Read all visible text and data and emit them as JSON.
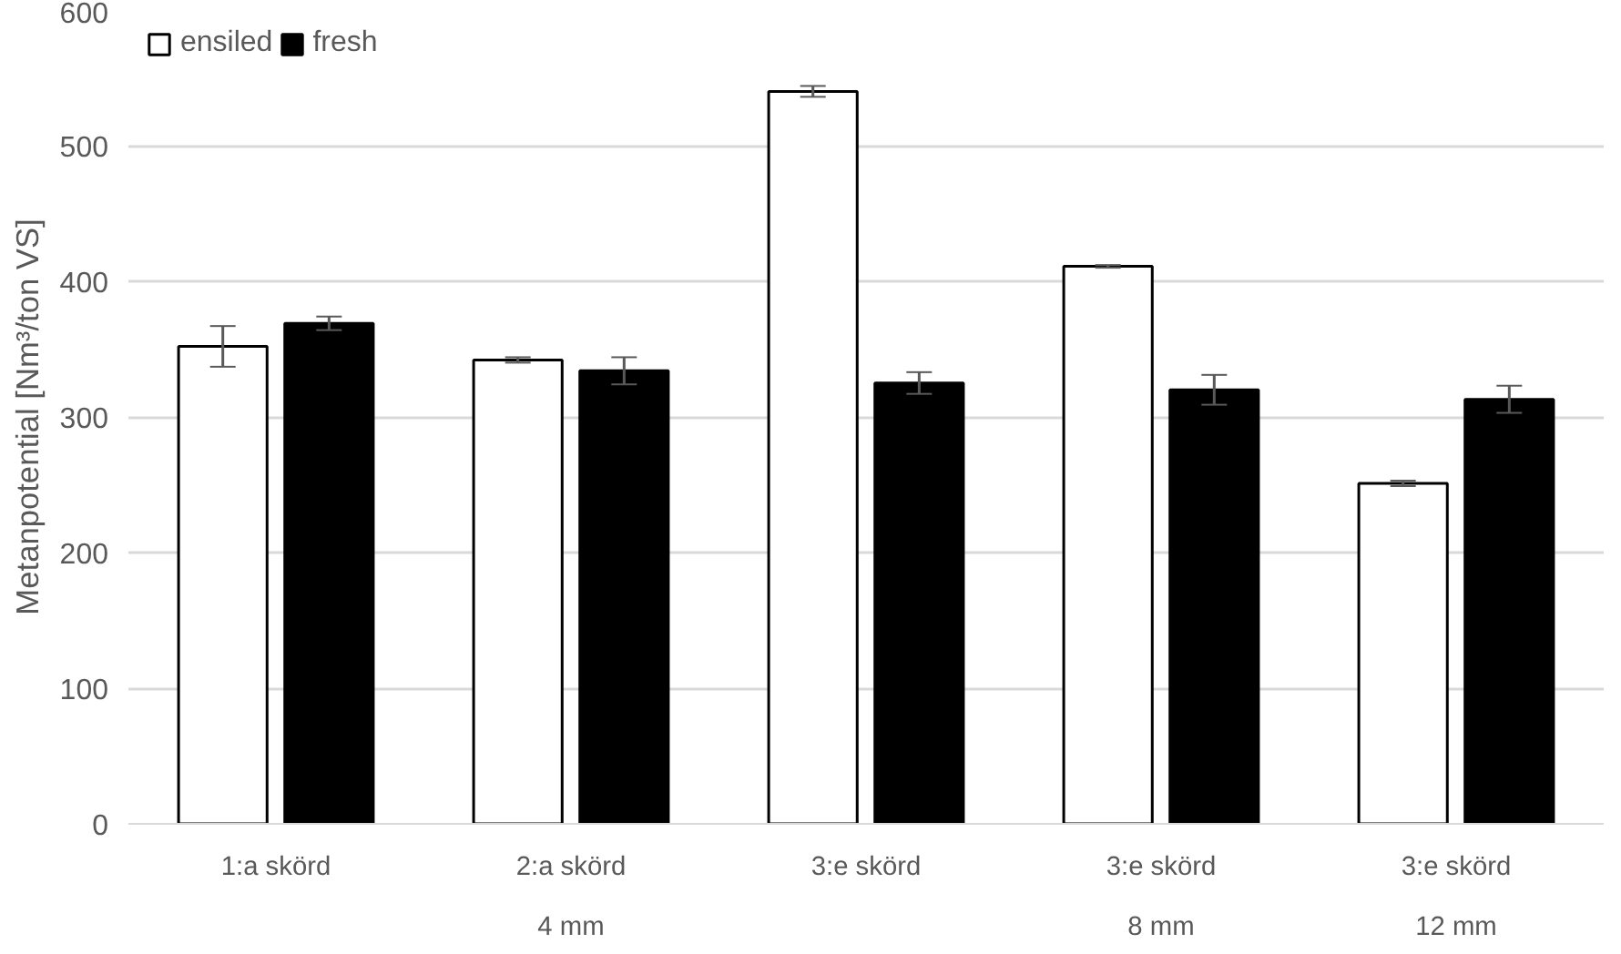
{
  "chart_data": {
    "type": "bar",
    "ylabel": "Metanpotential [Nm³/ton VS]",
    "categories": [
      "1:a skörd",
      "2:a skörd",
      "3:e skörd",
      "3:e skörd",
      "3:e skörd"
    ],
    "series": [
      {
        "name": "ensiled",
        "color": "#ffffff",
        "values": [
          352,
          342,
          540,
          411,
          251
        ],
        "errors": [
          15,
          2,
          4,
          1,
          2
        ]
      },
      {
        "name": "fresh",
        "color": "#000000",
        "values": [
          369,
          334,
          325,
          320,
          313
        ],
        "errors": [
          5,
          10,
          8,
          11,
          10
        ]
      }
    ],
    "annotations": [
      "4 mm",
      "8 mm",
      "12 mm"
    ],
    "ylim": [
      0,
      600
    ],
    "yticks": [
      0,
      100,
      200,
      300,
      400,
      500,
      600
    ],
    "grid": "y",
    "legend": "top left"
  }
}
